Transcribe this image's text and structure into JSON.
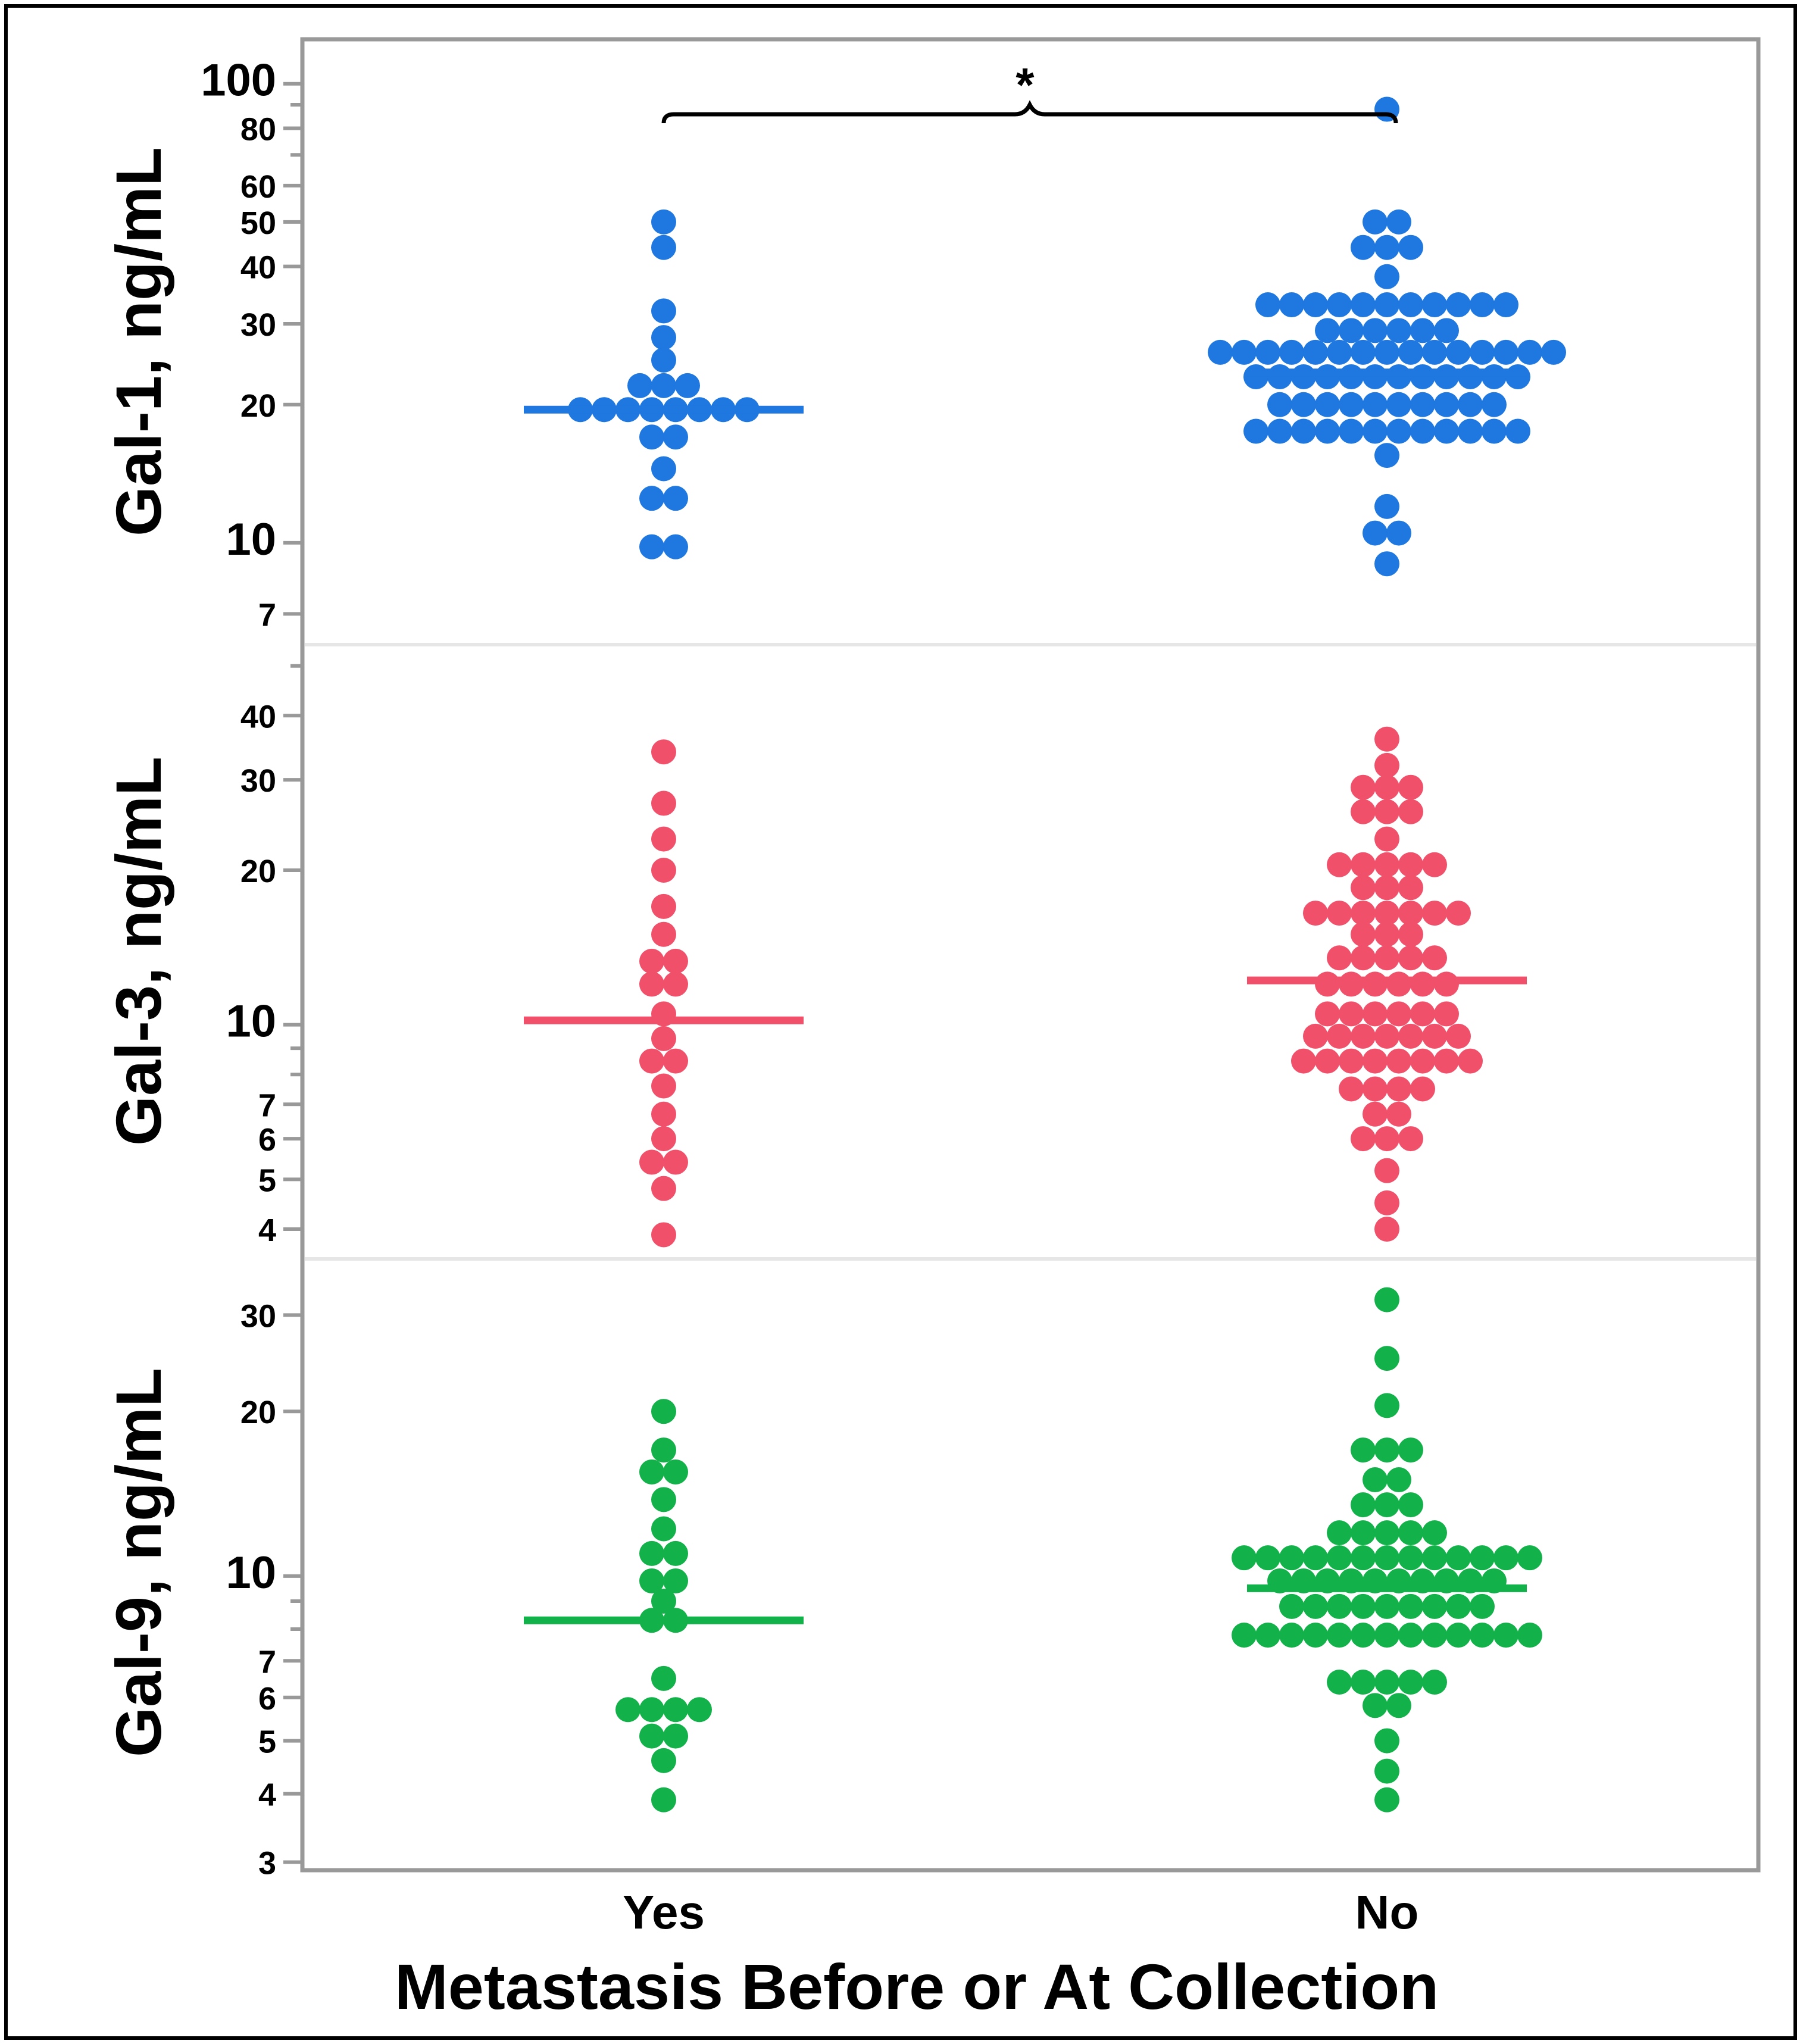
{
  "chart_data": {
    "type": "scatter",
    "subtype": "dot-plot",
    "scale": "log",
    "categories": [
      "Yes",
      "No"
    ],
    "xlabel": "Metastasis Before or At Collection",
    "significance": {
      "label": "*",
      "between": [
        "Yes",
        "No"
      ],
      "panel": "Gal-1, ng/mL"
    },
    "panels": [
      {
        "ylabel": "Gal-1, ng/mL",
        "color": "#1f77e0",
        "ylim": [
          6,
          125
        ],
        "ticks": [
          7,
          10,
          20,
          30,
          40,
          50,
          60,
          80,
          100
        ],
        "minor_ticks": [
          70,
          90
        ],
        "groups": [
          {
            "category": "Yes",
            "median": 19.5,
            "values": [
              50,
              44,
              32,
              28,
              25,
              22,
              22,
              22,
              19.5,
              19.5,
              19.5,
              19.5,
              19.5,
              19.5,
              19.5,
              19.5,
              17,
              17,
              14.5,
              12.5,
              12.5,
              9.8,
              9.8
            ]
          },
          {
            "category": "No",
            "median": 23.5,
            "values": [
              88,
              50,
              50,
              44,
              44,
              44,
              38,
              33,
              33,
              33,
              33,
              33,
              33,
              33,
              33,
              33,
              33,
              33,
              29,
              29,
              29,
              29,
              29,
              29,
              26,
              26,
              26,
              26,
              26,
              26,
              26,
              26,
              26,
              26,
              26,
              26,
              26,
              26,
              26,
              23,
              23,
              23,
              23,
              23,
              23,
              23,
              23,
              23,
              23,
              23,
              23,
              20,
              20,
              20,
              20,
              20,
              20,
              20,
              20,
              20,
              20,
              17.5,
              17.5,
              17.5,
              17.5,
              17.5,
              17.5,
              17.5,
              17.5,
              17.5,
              17.5,
              17.5,
              17.5,
              15.5,
              12,
              10.5,
              10.5,
              9
            ]
          }
        ]
      },
      {
        "ylabel": "Gal-3, ng/mL",
        "color": "#f0506a",
        "ylim": [
          3.5,
          55
        ],
        "ticks": [
          4,
          5,
          6,
          7,
          10,
          20,
          30,
          40
        ],
        "minor_ticks": [
          8,
          9,
          50
        ],
        "groups": [
          {
            "category": "Yes",
            "median": 10.2,
            "values": [
              34,
              27,
              23,
              20,
              17,
              15,
              13.3,
              13.3,
              12,
              12,
              10.5,
              9.4,
              8.5,
              8.5,
              7.6,
              6.7,
              6,
              5.4,
              5.4,
              4.8,
              3.9
            ]
          },
          {
            "category": "No",
            "median": 12.2,
            "values": [
              36,
              32,
              29,
              29,
              29,
              26,
              26,
              26,
              23,
              20.5,
              20.5,
              20.5,
              20.5,
              20.5,
              18.5,
              18.5,
              18.5,
              16.5,
              16.5,
              16.5,
              16.5,
              16.5,
              16.5,
              16.5,
              15,
              15,
              15,
              13.5,
              13.5,
              13.5,
              13.5,
              13.5,
              12,
              12,
              12,
              12,
              12,
              12,
              10.5,
              10.5,
              10.5,
              10.5,
              10.5,
              10.5,
              9.5,
              9.5,
              9.5,
              9.5,
              9.5,
              9.5,
              9.5,
              8.5,
              8.5,
              8.5,
              8.5,
              8.5,
              8.5,
              8.5,
              8.5,
              7.5,
              7.5,
              7.5,
              7.5,
              6.7,
              6.7,
              6,
              6,
              6,
              5.2,
              4.5,
              4
            ]
          }
        ]
      },
      {
        "ylabel": "Gal-9, ng/mL",
        "color": "#13b14a",
        "ylim": [
          2.9,
          38
        ],
        "ticks": [
          3,
          4,
          5,
          6,
          7,
          10,
          20,
          30
        ],
        "minor_ticks": [
          8,
          9
        ],
        "groups": [
          {
            "category": "Yes",
            "median": 8.3,
            "values": [
              20,
              17,
              15.5,
              15.5,
              13.8,
              12.2,
              11,
              11,
              9.8,
              9.8,
              9,
              8.3,
              8.3,
              6.5,
              5.7,
              5.7,
              5.7,
              5.7,
              5.1,
              5.1,
              4.6,
              3.9
            ]
          },
          {
            "category": "No",
            "median": 9.5,
            "values": [
              32,
              25,
              20.5,
              17,
              17,
              17,
              15,
              15,
              13.5,
              13.5,
              13.5,
              12,
              12,
              12,
              12,
              12,
              10.8,
              10.8,
              10.8,
              10.8,
              10.8,
              10.8,
              10.8,
              10.8,
              10.8,
              10.8,
              10.8,
              10.8,
              10.8,
              9.8,
              9.8,
              9.8,
              9.8,
              9.8,
              9.8,
              9.8,
              9.8,
              9.8,
              9.8,
              8.8,
              8.8,
              8.8,
              8.8,
              8.8,
              8.8,
              8.8,
              8.8,
              8.8,
              7.8,
              7.8,
              7.8,
              7.8,
              7.8,
              7.8,
              7.8,
              7.8,
              7.8,
              7.8,
              7.8,
              7.8,
              7.8,
              6.4,
              6.4,
              6.4,
              6.4,
              6.4,
              5.8,
              5.8,
              5,
              4.4,
              3.9
            ]
          }
        ]
      }
    ]
  }
}
